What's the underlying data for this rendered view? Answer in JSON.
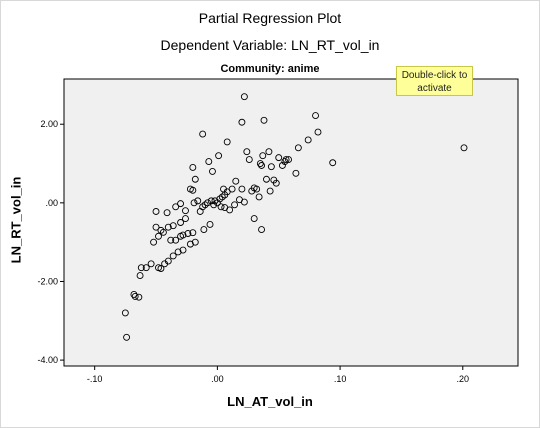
{
  "chart_data": {
    "type": "scatter",
    "title": "Partial Regression Plot",
    "subtitle": "Dependent Variable: LN_RT_vol_in",
    "panel_title": "Community: anime",
    "xlabel": "LN_AT_vol_in",
    "ylabel": "LN_RT_vol_in",
    "xlim": [
      -0.125,
      0.245
    ],
    "ylim": [
      -4.15,
      3.15
    ],
    "x_ticks": [
      -0.1,
      0.0,
      0.1,
      0.2
    ],
    "x_tick_labels": [
      "-.10",
      ".00",
      ".10",
      ".20"
    ],
    "y_ticks": [
      -4.0,
      -2.0,
      0.0,
      2.0
    ],
    "y_tick_labels": [
      "-4.00",
      "-2.00",
      ".00",
      "2.00"
    ],
    "grid": false,
    "points": [
      [
        -0.074,
        -3.42
      ],
      [
        -0.075,
        -2.8
      ],
      [
        -0.068,
        -2.33
      ],
      [
        -0.067,
        -2.38
      ],
      [
        -0.064,
        -2.4
      ],
      [
        -0.063,
        -1.85
      ],
      [
        -0.058,
        -1.65
      ],
      [
        -0.062,
        -1.65
      ],
      [
        -0.054,
        -1.55
      ],
      [
        -0.048,
        -1.65
      ],
      [
        -0.046,
        -1.67
      ],
      [
        -0.043,
        -1.55
      ],
      [
        -0.04,
        -1.48
      ],
      [
        -0.036,
        -1.35
      ],
      [
        -0.032,
        -1.25
      ],
      [
        -0.028,
        -1.2
      ],
      [
        -0.022,
        -1.05
      ],
      [
        -0.018,
        -1.0
      ],
      [
        -0.052,
        -1.0
      ],
      [
        -0.048,
        -0.85
      ],
      [
        -0.044,
        -0.75
      ],
      [
        -0.05,
        -0.62
      ],
      [
        -0.046,
        -0.7
      ],
      [
        -0.04,
        -0.62
      ],
      [
        -0.036,
        -0.58
      ],
      [
        -0.03,
        -0.5
      ],
      [
        -0.026,
        -0.4
      ],
      [
        -0.038,
        -0.95
      ],
      [
        -0.034,
        -0.95
      ],
      [
        -0.03,
        -0.85
      ],
      [
        -0.028,
        -0.82
      ],
      [
        -0.024,
        -0.78
      ],
      [
        -0.02,
        -0.76
      ],
      [
        -0.05,
        -0.22
      ],
      [
        -0.041,
        -0.25
      ],
      [
        -0.034,
        -0.1
      ],
      [
        -0.03,
        -0.02
      ],
      [
        -0.026,
        -0.2
      ],
      [
        -0.022,
        0.35
      ],
      [
        -0.02,
        0.32
      ],
      [
        -0.019,
        0.0
      ],
      [
        -0.016,
        0.05
      ],
      [
        -0.014,
        -0.22
      ],
      [
        -0.012,
        -0.1
      ],
      [
        -0.01,
        -0.05
      ],
      [
        -0.008,
        0.0
      ],
      [
        -0.005,
        0.05
      ],
      [
        -0.002,
        0.05
      ],
      [
        0.0,
        0.0
      ],
      [
        0.002,
        0.1
      ],
      [
        0.004,
        0.15
      ],
      [
        0.006,
        0.2
      ],
      [
        0.008,
        0.28
      ],
      [
        -0.003,
        -0.05
      ],
      [
        0.003,
        -0.1
      ],
      [
        0.006,
        -0.12
      ],
      [
        0.01,
        -0.18
      ],
      [
        0.014,
        -0.05
      ],
      [
        0.018,
        0.08
      ],
      [
        0.022,
        0.02
      ],
      [
        -0.006,
        -0.55
      ],
      [
        -0.011,
        -0.68
      ],
      [
        -0.02,
        0.9
      ],
      [
        -0.018,
        0.6
      ],
      [
        -0.012,
        1.75
      ],
      [
        -0.007,
        1.05
      ],
      [
        -0.004,
        0.8
      ],
      [
        0.001,
        1.2
      ],
      [
        0.005,
        0.35
      ],
      [
        0.008,
        1.55
      ],
      [
        0.012,
        0.35
      ],
      [
        0.015,
        0.55
      ],
      [
        0.02,
        2.05
      ],
      [
        0.022,
        2.7
      ],
      [
        0.024,
        1.3
      ],
      [
        0.026,
        1.1
      ],
      [
        0.028,
        0.3
      ],
      [
        0.03,
        0.38
      ],
      [
        0.032,
        0.35
      ],
      [
        0.034,
        0.15
      ],
      [
        0.035,
        1.0
      ],
      [
        0.036,
        0.95
      ],
      [
        0.037,
        1.2
      ],
      [
        0.038,
        2.1
      ],
      [
        0.04,
        0.6
      ],
      [
        0.042,
        1.3
      ],
      [
        0.043,
        0.3
      ],
      [
        0.046,
        0.58
      ],
      [
        0.048,
        0.5
      ],
      [
        0.05,
        1.15
      ],
      [
        0.053,
        0.95
      ],
      [
        0.055,
        1.05
      ],
      [
        0.056,
        1.1
      ],
      [
        0.058,
        1.1
      ],
      [
        0.064,
        0.75
      ],
      [
        0.066,
        1.4
      ],
      [
        0.074,
        1.6
      ],
      [
        0.08,
        2.22
      ],
      [
        0.082,
        1.8
      ],
      [
        0.094,
        1.02
      ],
      [
        0.03,
        -0.4
      ],
      [
        0.036,
        -0.68
      ],
      [
        0.02,
        0.35
      ],
      [
        0.044,
        0.92
      ],
      [
        0.201,
        1.4
      ]
    ]
  },
  "tooltip": {
    "line1": "Double-click to",
    "line2": "activate"
  }
}
